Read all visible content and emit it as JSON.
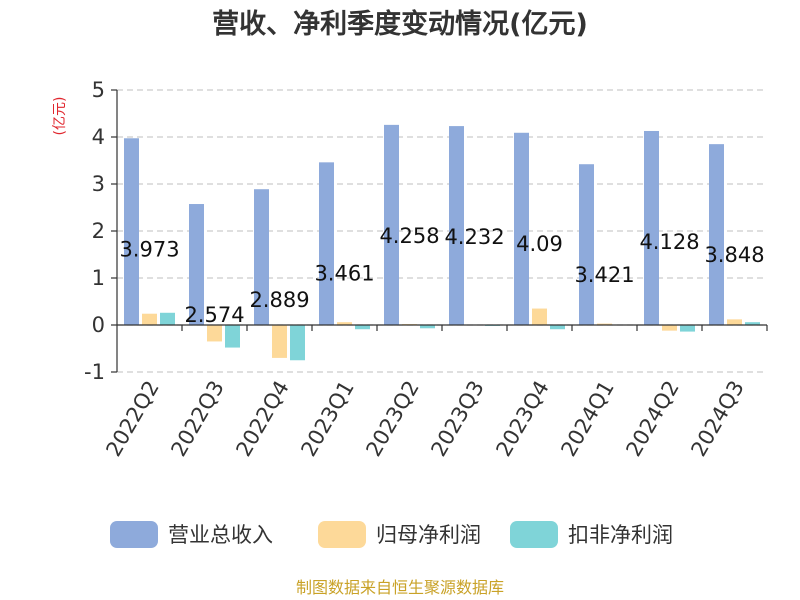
{
  "chart_data": {
    "type": "bar",
    "title": "营收、净利季度变动情况(亿元)",
    "ylabel": "(亿元)",
    "xlabel": "",
    "ylim": [
      -1,
      5
    ],
    "yticks": [
      5,
      4,
      3,
      2,
      1,
      0,
      -1
    ],
    "grid": true,
    "legend_position": "bottom",
    "categories": [
      "2022Q2",
      "2022Q3",
      "2022Q4",
      "2023Q1",
      "2023Q2",
      "2023Q3",
      "2023Q4",
      "2024Q1",
      "2024Q2",
      "2024Q3"
    ],
    "series": [
      {
        "name": "营业总收入",
        "color": "#8eaadb",
        "values": [
          3.973,
          2.574,
          2.889,
          3.461,
          4.258,
          4.232,
          4.09,
          3.421,
          4.128,
          3.848
        ]
      },
      {
        "name": "归母净利润",
        "color": "#fdd999",
        "values": [
          0.24,
          -0.35,
          -0.7,
          0.06,
          0.02,
          0.01,
          0.35,
          0.03,
          -0.12,
          0.12
        ]
      },
      {
        "name": "扣非净利润",
        "color": "#7fd4d8",
        "values": [
          0.26,
          -0.48,
          -0.75,
          -0.09,
          -0.07,
          -0.02,
          -0.09,
          0.01,
          -0.14,
          0.06
        ]
      }
    ],
    "data_labels": [
      "3.973",
      "2.574",
      "2.889",
      "3.461",
      "4.258",
      "4.232",
      "4.09",
      "3.421",
      "4.128",
      "3.848"
    ]
  },
  "source": "制图数据来自恒生聚源数据库"
}
